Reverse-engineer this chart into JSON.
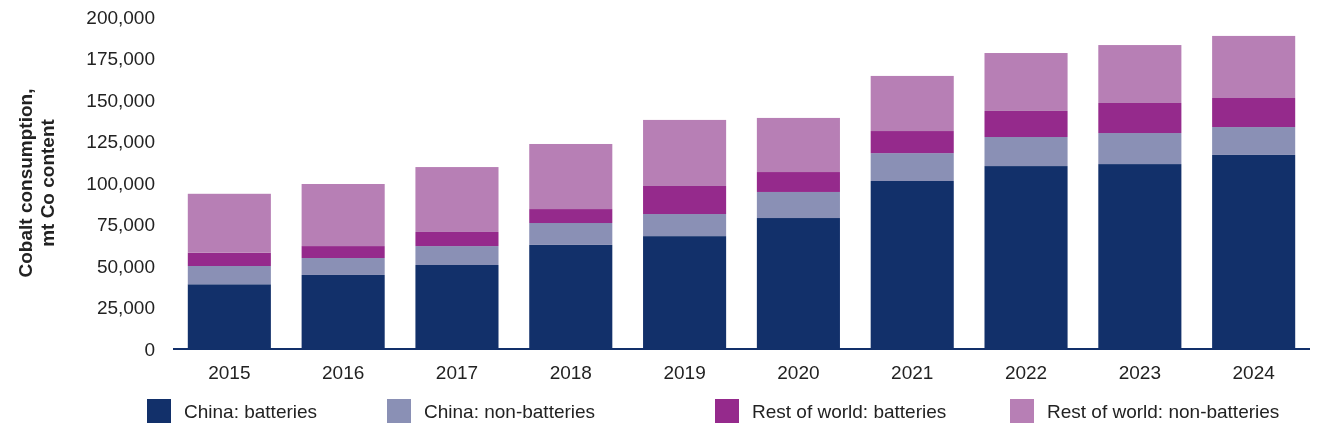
{
  "chart_data": {
    "type": "bar",
    "stacked": true,
    "ylabel": "Cobalt consumption,\nmt Co content",
    "categories": [
      "2015",
      "2016",
      "2017",
      "2018",
      "2019",
      "2020",
      "2021",
      "2022",
      "2023",
      "2024"
    ],
    "series": [
      {
        "name": "China: batteries",
        "color": "#12306a",
        "values": [
          39000,
          44600,
          50600,
          62700,
          68000,
          78900,
          101200,
          110200,
          111400,
          116900
        ]
      },
      {
        "name": "China: non-batteries",
        "color": "#8a90b5",
        "values": [
          11000,
          10200,
          11400,
          13200,
          13300,
          15700,
          16800,
          17500,
          18700,
          16800
        ]
      },
      {
        "name": "Rest of world: batteries",
        "color": "#952a8c",
        "values": [
          8000,
          7200,
          8500,
          8400,
          16900,
          12000,
          13300,
          15700,
          18100,
          17500
        ]
      },
      {
        "name": "Rest of world: non-batteries",
        "color": "#b77fb5",
        "values": [
          35500,
          37400,
          39100,
          39200,
          39800,
          32600,
          33200,
          34900,
          34900,
          37400
        ]
      }
    ],
    "ylim": [
      0,
      200000
    ],
    "yticks": [
      {
        "value": 0,
        "label": "0"
      },
      {
        "value": 25000,
        "label": "25,000"
      },
      {
        "value": 50000,
        "label": "50,000"
      },
      {
        "value": 75000,
        "label": "75,000"
      },
      {
        "value": 100000,
        "label": "100,000"
      },
      {
        "value": 125000,
        "label": "125,000"
      },
      {
        "value": 150000,
        "label": "150,000"
      },
      {
        "value": 175000,
        "label": "175,000"
      },
      {
        "value": 200000,
        "label": "200,000"
      }
    ],
    "grid": false,
    "legend": "bottom"
  }
}
